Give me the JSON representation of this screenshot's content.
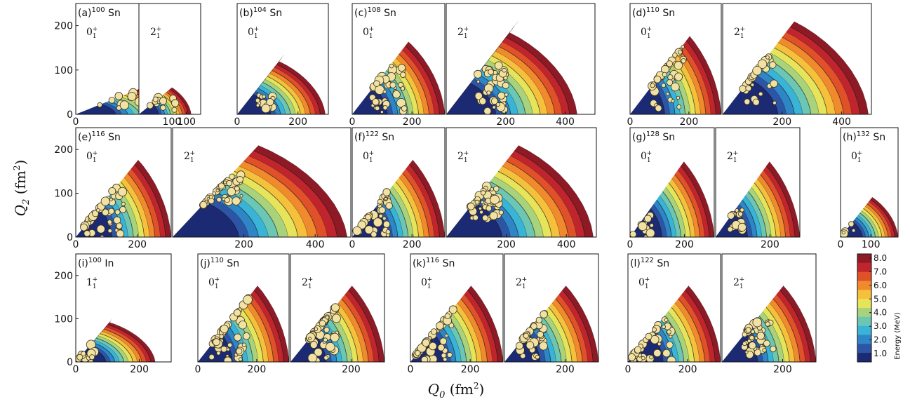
{
  "figure": {
    "xlabel": "Q_0 (fm^2)",
    "ylabel": "Q_2 (fm^2)",
    "xlabel_main": "Q",
    "xlabel_sub": "0",
    "xlabel_unit": " (fm",
    "xlabel_exp": "2",
    "xlabel_close": ")",
    "ylabel_main": "Q",
    "ylabel_sub": "2",
    "ylabel_unit": " (fm",
    "ylabel_exp": "2",
    "ylabel_close": ")",
    "colorbar": {
      "title": "Energy (MeV)",
      "ticks": [
        "8.0",
        "7.0",
        "6.0",
        "5.0",
        "4.0",
        "3.0",
        "2.0",
        "1.0"
      ],
      "colors": [
        "#1b2a72",
        "#2c55a6",
        "#2f86c6",
        "#39b3d6",
        "#6cc6b4",
        "#a8d27c",
        "#e6e45a",
        "#f5c03c",
        "#f08a2c",
        "#e0512a",
        "#c0242c",
        "#8e1a26"
      ]
    }
  },
  "chart_data": [
    {
      "type": "heatmap",
      "label": "(a)",
      "mass": "100",
      "element": "Sn",
      "state": "0",
      "state_sub": "1",
      "state_sup": "+",
      "xmax": 110,
      "ymax": 80,
      "cluster": {
        "cx": 55,
        "cy": 30,
        "w": 60,
        "h": 45,
        "n": 14
      },
      "yticks": [
        "0",
        "100",
        "200"
      ],
      "xticks": [
        "0",
        "100"
      ]
    },
    {
      "type": "heatmap",
      "label": "",
      "mass": "",
      "element": "",
      "state": "2",
      "state_sub": "1",
      "state_sup": "+",
      "xmax": 110,
      "ymax": 80,
      "cluster": {
        "cx": 50,
        "cy": 30,
        "w": 60,
        "h": 45,
        "n": 12
      },
      "yticks": [],
      "xticks": [
        "100"
      ]
    },
    {
      "type": "heatmap",
      "label": "(b)",
      "mass": "104",
      "element": "Sn",
      "state": "0",
      "state_sub": "1",
      "state_sup": "+",
      "xmax": 290,
      "ymax": 135,
      "cluster": {
        "cx": 95,
        "cy": 28,
        "w": 55,
        "h": 30,
        "n": 14
      },
      "yticks": [],
      "xticks": [
        "0",
        "200"
      ]
    },
    {
      "type": "heatmap",
      "label": "(c)",
      "mass": "108",
      "element": "Sn",
      "state": "0",
      "state_sub": "1",
      "state_sup": "+",
      "xmax": 310,
      "ymax": 210,
      "cluster": {
        "cx": 120,
        "cy": 60,
        "w": 110,
        "h": 110,
        "n": 45
      },
      "yticks": [],
      "xticks": [
        "0",
        "200"
      ]
    },
    {
      "type": "heatmap",
      "label": "",
      "mass": "",
      "element": "",
      "state": "2",
      "state_sub": "1",
      "state_sup": "+",
      "xmax": 440,
      "ymax": 210,
      "cluster": {
        "cx": 150,
        "cy": 60,
        "w": 110,
        "h": 110,
        "n": 40
      },
      "yticks": [],
      "xticks": [
        "200",
        "400"
      ]
    },
    {
      "type": "heatmap",
      "label": "(d)",
      "mass": "110",
      "element": "Sn",
      "state": "0",
      "state_sub": "1",
      "state_sup": "+",
      "xmax": 310,
      "ymax": 240,
      "cluster": {
        "cx": 130,
        "cy": 90,
        "w": 110,
        "h": 160,
        "n": 40
      },
      "yticks": [],
      "xticks": [
        "0",
        "200"
      ]
    },
    {
      "type": "heatmap",
      "label": "",
      "mass": "",
      "element": "",
      "state": "2",
      "state_sub": "1",
      "state_sup": "+",
      "xmax": 490,
      "ymax": 240,
      "cluster": {
        "cx": 120,
        "cy": 100,
        "w": 110,
        "h": 160,
        "n": 40
      },
      "yticks": [],
      "xticks": [
        "200",
        "400"
      ]
    },
    {
      "type": "heatmap",
      "label": "(e)",
      "mass": "116",
      "element": "Sn",
      "state": "0",
      "state_sub": "1",
      "state_sup": "+",
      "xmax": 310,
      "ymax": 240,
      "cluster": {
        "cx": 90,
        "cy": 70,
        "w": 130,
        "h": 140,
        "n": 50
      },
      "yticks": [
        "0",
        "100",
        "200"
      ],
      "xticks": [
        "0",
        "200"
      ]
    },
    {
      "type": "heatmap",
      "label": "",
      "mass": "",
      "element": "",
      "state": "2",
      "state_sub": "1",
      "state_sup": "+",
      "xmax": 490,
      "ymax": 240,
      "cluster": {
        "cx": 140,
        "cy": 115,
        "w": 110,
        "h": 70,
        "n": 55
      },
      "yticks": [],
      "xticks": [
        "200",
        "400"
      ]
    },
    {
      "type": "heatmap",
      "label": "(f)",
      "mass": "122",
      "element": "Sn",
      "state": "0",
      "state_sub": "1",
      "state_sup": "+",
      "xmax": 310,
      "ymax": 240,
      "cluster": {
        "cx": 70,
        "cy": 60,
        "w": 110,
        "h": 120,
        "n": 45
      },
      "yticks": [],
      "xticks": [
        "0",
        "200"
      ]
    },
    {
      "type": "heatmap",
      "label": "",
      "mass": "",
      "element": "",
      "state": "2",
      "state_sub": "1",
      "state_sup": "+",
      "xmax": 490,
      "ymax": 240,
      "cluster": {
        "cx": 130,
        "cy": 80,
        "w": 110,
        "h": 80,
        "n": 45
      },
      "yticks": [],
      "xticks": [
        "200",
        "400"
      ]
    },
    {
      "type": "heatmap",
      "label": "(g)",
      "mass": "128",
      "element": "Sn",
      "state": "0",
      "state_sub": "1",
      "state_sup": "+",
      "xmax": 310,
      "ymax": 230,
      "cluster": {
        "cx": 50,
        "cy": 25,
        "w": 80,
        "h": 50,
        "n": 14
      },
      "yticks": [],
      "xticks": [
        "0",
        "200"
      ]
    },
    {
      "type": "heatmap",
      "label": "",
      "mass": "",
      "element": "",
      "state": "2",
      "state_sub": "1",
      "state_sup": "+",
      "xmax": 310,
      "ymax": 230,
      "cluster": {
        "cx": 70,
        "cy": 40,
        "w": 60,
        "h": 60,
        "n": 14
      },
      "yticks": [],
      "xticks": [
        "200"
      ]
    },
    {
      "type": "heatmap",
      "label": "(h)",
      "mass": "132",
      "element": "Sn",
      "state": "0",
      "state_sub": "1",
      "state_sup": "+",
      "xmax": 190,
      "ymax": 110,
      "cluster": {
        "cx": 25,
        "cy": 15,
        "w": 50,
        "h": 35,
        "n": 8
      },
      "yticks": [],
      "xticks": [
        "0",
        "100"
      ]
    },
    {
      "type": "heatmap",
      "label": "(i)",
      "mass": "100",
      "element": "In",
      "state": "1",
      "state_sub": "1",
      "state_sup": "+",
      "xmax": 250,
      "ymax": 100,
      "cluster": {
        "cx": 35,
        "cy": 20,
        "w": 55,
        "h": 40,
        "n": 14
      },
      "yticks": [
        "0",
        "100",
        "200"
      ],
      "xticks": [
        "0",
        "200"
      ]
    },
    {
      "type": "heatmap",
      "label": "(j)",
      "mass": "110",
      "element": "Sn",
      "state": "0",
      "state_sub": "1",
      "state_sup": "+",
      "xmax": 310,
      "ymax": 240,
      "cluster": {
        "cx": 110,
        "cy": 90,
        "w": 130,
        "h": 180,
        "n": 55
      },
      "yticks": [],
      "xticks": [
        "0",
        "200"
      ]
    },
    {
      "type": "heatmap",
      "label": "",
      "mass": "",
      "element": "",
      "state": "2",
      "state_sub": "1",
      "state_sup": "+",
      "xmax": 310,
      "ymax": 240,
      "cluster": {
        "cx": 110,
        "cy": 85,
        "w": 100,
        "h": 180,
        "n": 60
      },
      "yticks": [],
      "xticks": [
        "200"
      ]
    },
    {
      "type": "heatmap",
      "label": "(k)",
      "mass": "116",
      "element": "Sn",
      "state": "0",
      "state_sub": "1",
      "state_sup": "+",
      "xmax": 310,
      "ymax": 240,
      "cluster": {
        "cx": 80,
        "cy": 70,
        "w": 130,
        "h": 130,
        "n": 45
      },
      "yticks": [],
      "xticks": [
        "0",
        "200"
      ]
    },
    {
      "type": "heatmap",
      "label": "",
      "mass": "",
      "element": "",
      "state": "2",
      "state_sub": "1",
      "state_sup": "+",
      "xmax": 310,
      "ymax": 240,
      "cluster": {
        "cx": 90,
        "cy": 80,
        "w": 90,
        "h": 140,
        "n": 40
      },
      "yticks": [],
      "xticks": [
        "200"
      ]
    },
    {
      "type": "heatmap",
      "label": "(l)",
      "mass": "122",
      "element": "Sn",
      "state": "0",
      "state_sub": "1",
      "state_sup": "+",
      "xmax": 310,
      "ymax": 240,
      "cluster": {
        "cx": 80,
        "cy": 50,
        "w": 140,
        "h": 100,
        "n": 45
      },
      "yticks": [],
      "xticks": [
        "0",
        "200"
      ]
    },
    {
      "type": "heatmap",
      "label": "",
      "mass": "",
      "element": "",
      "state": "2",
      "state_sub": "1",
      "state_sup": "+",
      "xmax": 310,
      "ymax": 240,
      "cluster": {
        "cx": 120,
        "cy": 55,
        "w": 100,
        "h": 80,
        "n": 45
      },
      "yticks": [],
      "xticks": [
        "200"
      ]
    }
  ]
}
